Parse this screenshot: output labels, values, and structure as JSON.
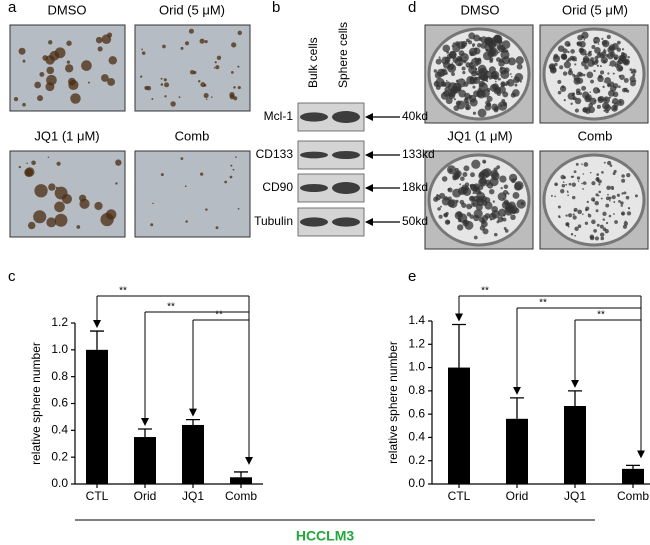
{
  "panel_labels": {
    "a": "a",
    "b": "b",
    "c": "c",
    "d": "d",
    "e": "e"
  },
  "panel_a": {
    "images": [
      "DMSO",
      "Orid (5 μM)",
      "JQ1 (1 μM)",
      "Comb"
    ]
  },
  "panel_b": {
    "columns": [
      "Bulk cells",
      "Sphere cells"
    ],
    "rows": [
      {
        "protein": "Mcl-1",
        "size": "40kd"
      },
      {
        "protein": "CD133",
        "size": "133kd"
      },
      {
        "protein": "CD90",
        "size": "18kd"
      },
      {
        "protein": "Tubulin",
        "size": "50kd"
      }
    ]
  },
  "panel_d": {
    "images": [
      "DMSO",
      "Orid (5 μM)",
      "JQ1 (1 μM)",
      "Comb"
    ]
  },
  "chart_data": [
    {
      "type": "bar",
      "categories": [
        "CTL",
        "Orid",
        "JQ1",
        "Comb"
      ],
      "values": [
        1.0,
        0.35,
        0.44,
        0.05
      ],
      "errors": [
        0.14,
        0.06,
        0.04,
        0.04
      ],
      "color": "#000000",
      "y_label": "relative sphere number",
      "ylim": [
        0,
        1.2
      ],
      "yticks": [
        {
          "value": 0,
          "label": "0.0"
        },
        0.2,
        0.4,
        0.6,
        0.8,
        {
          "value": 1,
          "label": "1.0"
        },
        1.2
      ],
      "annotations": [
        "**",
        "**",
        "**"
      ]
    },
    {
      "type": "bar",
      "categories": [
        "CTL",
        "Orid",
        "JQ1",
        "Comb"
      ],
      "values": [
        1.0,
        0.56,
        0.67,
        0.13
      ],
      "errors": [
        0.37,
        0.18,
        0.13,
        0.03
      ],
      "color": "#000000",
      "y_label": "relative sphere number",
      "ylim": [
        0,
        1.4
      ],
      "yticks": [
        {
          "value": 0,
          "label": "0.0"
        },
        0.2,
        0.4,
        0.6,
        0.8,
        {
          "value": 1,
          "label": "1.0"
        },
        1.2,
        1.4
      ],
      "annotations": [
        "**",
        "**",
        "**"
      ]
    }
  ],
  "footer": "HCCLM3"
}
